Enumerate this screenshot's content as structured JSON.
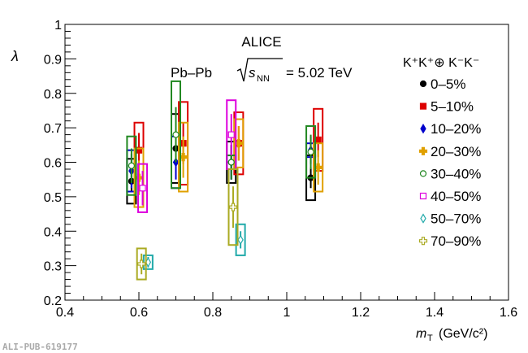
{
  "chart_data": {
    "type": "scatter",
    "title": "ALICE",
    "subtitle": "Pb–Pb",
    "energy_label": "= 5.02 TeV",
    "energy_symbol": "s",
    "energy_sub": "NN",
    "legend_title": "K⁺K⁺⊕ K⁻K⁻",
    "legend_placement": "right",
    "xlabel": "m",
    "xlabel_sub": "T",
    "xlabel_unit": "(GeV/c²)",
    "ylabel": "λ",
    "xlim": [
      0.4,
      1.6
    ],
    "ylim": [
      0.2,
      1.0
    ],
    "xticks": [
      "0.4",
      "0.6",
      "0.8",
      "1",
      "1.2",
      "1.4",
      "1.6"
    ],
    "yticks": [
      "0.2",
      "0.3",
      "0.4",
      "0.5",
      "0.6",
      "0.7",
      "0.8",
      "0.9",
      "1"
    ],
    "series": [
      {
        "name": "0–5%",
        "color": "#000000",
        "marker": "circle",
        "points": [
          {
            "x": 0.58,
            "y": 0.545,
            "stat": 0.03,
            "syst": 0.065
          },
          {
            "x": 0.7,
            "y": 0.64,
            "stat": 0.06,
            "syst": 0.1
          },
          {
            "x": 0.85,
            "y": 0.6,
            "stat": 0.05,
            "syst": 0.06
          },
          {
            "x": 1.065,
            "y": 0.555,
            "stat": 0.03,
            "syst": 0.065
          }
        ]
      },
      {
        "name": "5–10%",
        "color": "#dd0000",
        "marker": "square",
        "points": [
          {
            "x": 0.6,
            "y": 0.635,
            "stat": 0.05,
            "syst": 0.08
          },
          {
            "x": 0.72,
            "y": 0.655,
            "stat": 0.06,
            "syst": 0.12
          },
          {
            "x": 0.87,
            "y": 0.655,
            "stat": 0.05,
            "syst": 0.09
          },
          {
            "x": 1.085,
            "y": 0.665,
            "stat": 0.05,
            "syst": 0.09
          }
        ]
      },
      {
        "name": "10–20%",
        "color": "#0000cc",
        "marker": "diamond",
        "points": [
          {
            "x": 0.58,
            "y": 0.575,
            "stat": 0.05,
            "syst": 0.06
          },
          {
            "x": 0.7,
            "y": 0.6,
            "stat": 0.05,
            "syst": 0.075
          },
          {
            "x": 0.85,
            "y": 0.6,
            "stat": 0.05,
            "syst": 0.02
          },
          {
            "x": 1.065,
            "y": 0.635,
            "stat": 0.04,
            "syst": 0.02
          }
        ]
      },
      {
        "name": "20–30%",
        "color": "#e0a000",
        "marker": "cross",
        "points": [
          {
            "x": 0.6,
            "y": 0.555,
            "stat": 0.05,
            "syst": 0.085
          },
          {
            "x": 0.72,
            "y": 0.615,
            "stat": 0.06,
            "syst": 0.1
          },
          {
            "x": 0.87,
            "y": 0.655,
            "stat": 0.05,
            "syst": 0.07
          },
          {
            "x": 1.085,
            "y": 0.585,
            "stat": 0.05,
            "syst": 0.07
          }
        ]
      },
      {
        "name": "30–40%",
        "color": "#228822",
        "marker": "open-circle",
        "points": [
          {
            "x": 0.58,
            "y": 0.59,
            "stat": 0.05,
            "syst": 0.085
          },
          {
            "x": 0.7,
            "y": 0.68,
            "stat": 0.08,
            "syst": 0.155
          },
          {
            "x": 0.85,
            "y": 0.6,
            "stat": 0.05,
            "syst": 0.02
          },
          {
            "x": 1.065,
            "y": 0.63,
            "stat": 0.05,
            "syst": 0.075
          }
        ]
      },
      {
        "name": "40–50%",
        "color": "#dd00dd",
        "marker": "open-square",
        "points": [
          {
            "x": 0.61,
            "y": 0.525,
            "stat": 0.05,
            "syst": 0.07
          },
          {
            "x": 0.85,
            "y": 0.68,
            "stat": 0.06,
            "syst": 0.1
          }
        ]
      },
      {
        "name": "50–70%",
        "color": "#22aaaa",
        "marker": "open-diamond",
        "points": [
          {
            "x": 0.625,
            "y": 0.31,
            "stat": 0.015,
            "syst": 0.02
          },
          {
            "x": 0.875,
            "y": 0.375,
            "stat": 0.025,
            "syst": 0.045
          }
        ]
      },
      {
        "name": "70–90%",
        "color": "#aaaa22",
        "marker": "open-cross",
        "points": [
          {
            "x": 0.607,
            "y": 0.305,
            "stat": 0.03,
            "syst": 0.045
          },
          {
            "x": 0.855,
            "y": 0.47,
            "stat": 0.06,
            "syst": 0.11
          }
        ]
      }
    ]
  },
  "footer": {
    "pub_id": "ALI-PUB-619177"
  }
}
